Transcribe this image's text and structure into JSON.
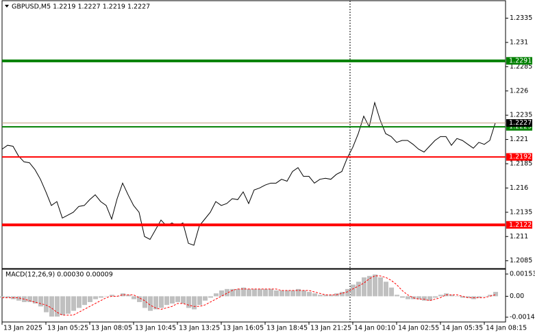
{
  "chart_data": [
    {
      "type": "line",
      "title": "GBPUSD,M5  1.2219 1.2227 1.2219 1.2227",
      "categories": [
        "13 Jan 2025",
        null,
        null,
        null,
        null,
        null,
        null,
        null,
        "13 Jan 05:25",
        null,
        null,
        null,
        null,
        null,
        null,
        null,
        "13 Jan 08:05",
        null,
        null,
        null,
        null,
        null,
        null,
        null,
        "13 Jan 10:45",
        null,
        null,
        null,
        null,
        null,
        null,
        null,
        "13 Jan 13:25",
        null,
        null,
        null,
        null,
        null,
        null,
        null,
        "13 Jan 16:05",
        null,
        null,
        null,
        null,
        null,
        null,
        null,
        "13 Jan 18:45",
        null,
        null,
        null,
        null,
        null,
        null,
        null,
        "13 Jan 21:25",
        null,
        null,
        null,
        null,
        null,
        null,
        null,
        "14 Jan 00:10",
        null,
        null,
        null,
        null,
        null,
        null,
        null,
        "14 Jan 02:55",
        null,
        null,
        null,
        null,
        null,
        null,
        null,
        "14 Jan 05:35",
        null,
        null,
        null,
        null,
        null,
        null,
        null,
        "14 Jan 08:15",
        null,
        null
      ],
      "series": [
        {
          "color": "#000000",
          "values": [
            1.22,
            1.2204,
            1.2203,
            1.2193,
            1.2187,
            1.2186,
            1.2179,
            1.2169,
            1.2156,
            1.2142,
            1.2146,
            1.2129,
            1.2132,
            1.2135,
            1.2141,
            1.2142,
            1.2148,
            1.2153,
            1.2146,
            1.2142,
            1.2128,
            1.2149,
            1.2165,
            1.2153,
            1.2142,
            1.2135,
            1.211,
            1.2107,
            1.2117,
            1.2127,
            1.2121,
            1.2124,
            1.2121,
            1.2124,
            1.2103,
            1.2101,
            1.2121,
            1.2128,
            1.2135,
            1.2146,
            1.2142,
            1.2144,
            1.2149,
            1.2148,
            1.2156,
            1.2144,
            1.2158,
            1.216,
            1.2163,
            1.2165,
            1.2165,
            1.2169,
            1.2167,
            1.2177,
            1.2181,
            1.2172,
            1.2172,
            1.2165,
            1.2169,
            1.217,
            1.2169,
            1.2174,
            1.2177,
            1.2191,
            1.2202,
            1.2216,
            1.2234,
            1.2223,
            1.2248,
            1.223,
            1.2216,
            1.2213,
            1.2207,
            1.2209,
            1.2209,
            1.2205,
            1.22,
            1.2197,
            1.2203,
            1.2209,
            1.2213,
            1.2213,
            1.2204,
            1.2211,
            1.2209,
            1.2205,
            1.2201,
            1.2207,
            1.2205,
            1.2209,
            1.2227
          ]
        }
      ],
      "ylim": [
        1.2077,
        1.2353
      ],
      "yticks": [
        1.2335,
        1.231,
        1.2285,
        1.226,
        1.2235,
        1.221,
        1.2185,
        1.216,
        1.2135,
        1.211,
        1.2085
      ],
      "levels": [
        {
          "value": 1.2291,
          "color": "#008000",
          "width": 4
        },
        {
          "value": 1.2223,
          "color": "#008000",
          "width": 2
        },
        {
          "value": 1.2192,
          "color": "#ff0000",
          "width": 2
        },
        {
          "value": 1.2122,
          "color": "#ff0000",
          "width": 4
        }
      ],
      "last": {
        "value": 1.2227,
        "color": "#000000"
      }
    },
    {
      "type": "bar",
      "title": "MACD(12,26,9) 0.00030 0.00009",
      "series": [
        {
          "type": "bar",
          "color": "#c0c0c0",
          "values": [
            -0.0001,
            -0.0001,
            -0.0002,
            -0.0003,
            -0.0004,
            -0.0004,
            -0.0005,
            -0.0007,
            -0.0011,
            -0.0014,
            -0.0014,
            -0.0013,
            -0.0012,
            -0.001,
            -0.0008,
            -0.0006,
            -0.0004,
            -0.0002,
            -0.0001,
            0.0,
            0.0001,
            0.0,
            0.0002,
            0.0001,
            -0.0002,
            -0.0004,
            -0.0008,
            -0.001,
            -0.0009,
            -0.0008,
            -0.0006,
            -0.0005,
            -0.0004,
            -0.0005,
            -0.0008,
            -0.0009,
            -0.0006,
            -0.0003,
            -0.0001,
            0.0002,
            0.0004,
            0.0005,
            0.0005,
            0.0005,
            0.0006,
            0.0005,
            0.0005,
            0.0005,
            0.0005,
            0.0005,
            0.0004,
            0.0004,
            0.0004,
            0.0004,
            0.0005,
            0.0004,
            0.0003,
            0.0002,
            0.0001,
            0.0001,
            0.0001,
            0.0002,
            0.0003,
            0.0005,
            0.0008,
            0.001,
            0.0013,
            0.0014,
            0.0015,
            0.0013,
            0.001,
            0.0006,
            0.0001,
            -0.0001,
            -0.0002,
            -0.0002,
            -0.0002,
            -0.0003,
            -0.0003,
            -0.0001,
            0.0001,
            0.0002,
            0.0001,
            0.0,
            -0.0001,
            -0.0001,
            -0.0002,
            -0.0001,
            0.0,
            0.0001,
            0.0003
          ]
        },
        {
          "type": "line",
          "color": "#ff0000",
          "dashed": true,
          "values": [
            -0.0001,
            -0.0001,
            -0.0001,
            -0.0001,
            -0.0002,
            -0.0003,
            -0.0004,
            -0.0005,
            -0.0006,
            -0.0008,
            -0.0011,
            -0.0013,
            -0.0013,
            -0.0013,
            -0.0011,
            -0.0009,
            -0.0007,
            -0.0005,
            -0.0003,
            -0.0001,
            0.0,
            0.0,
            0.0001,
            0.0001,
            0.0001,
            -0.0001,
            -0.0003,
            -0.0006,
            -0.0008,
            -0.0009,
            -0.0008,
            -0.0007,
            -0.0005,
            -0.0005,
            -0.0006,
            -0.0007,
            -0.0007,
            -0.0006,
            -0.0004,
            -0.0002,
            0.0,
            0.0002,
            0.0004,
            0.0005,
            0.0005,
            0.0005,
            0.0005,
            0.0005,
            0.0005,
            0.0005,
            0.0005,
            0.0004,
            0.0004,
            0.0004,
            0.0004,
            0.0004,
            0.0004,
            0.0003,
            0.0002,
            0.0001,
            0.0001,
            0.0001,
            0.0002,
            0.0003,
            0.0005,
            0.0007,
            0.0009,
            0.0012,
            0.0014,
            0.0014,
            0.0013,
            0.0011,
            0.0008,
            0.0004,
            0.0001,
            -0.0001,
            -0.0002,
            -0.0002,
            -0.0003,
            -0.0002,
            -0.0001,
            0.0001,
            0.0001,
            0.0001,
            0.0,
            -0.0001,
            -0.0001,
            -0.0001,
            -0.0001,
            0.0,
            0.0001
          ]
        }
      ],
      "ylim": [
        -0.00177,
        0.00186
      ],
      "yticks": [
        0.00153,
        {
          "value": 0,
          "label": "0.00"
        },
        -0.00144
      ]
    }
  ]
}
